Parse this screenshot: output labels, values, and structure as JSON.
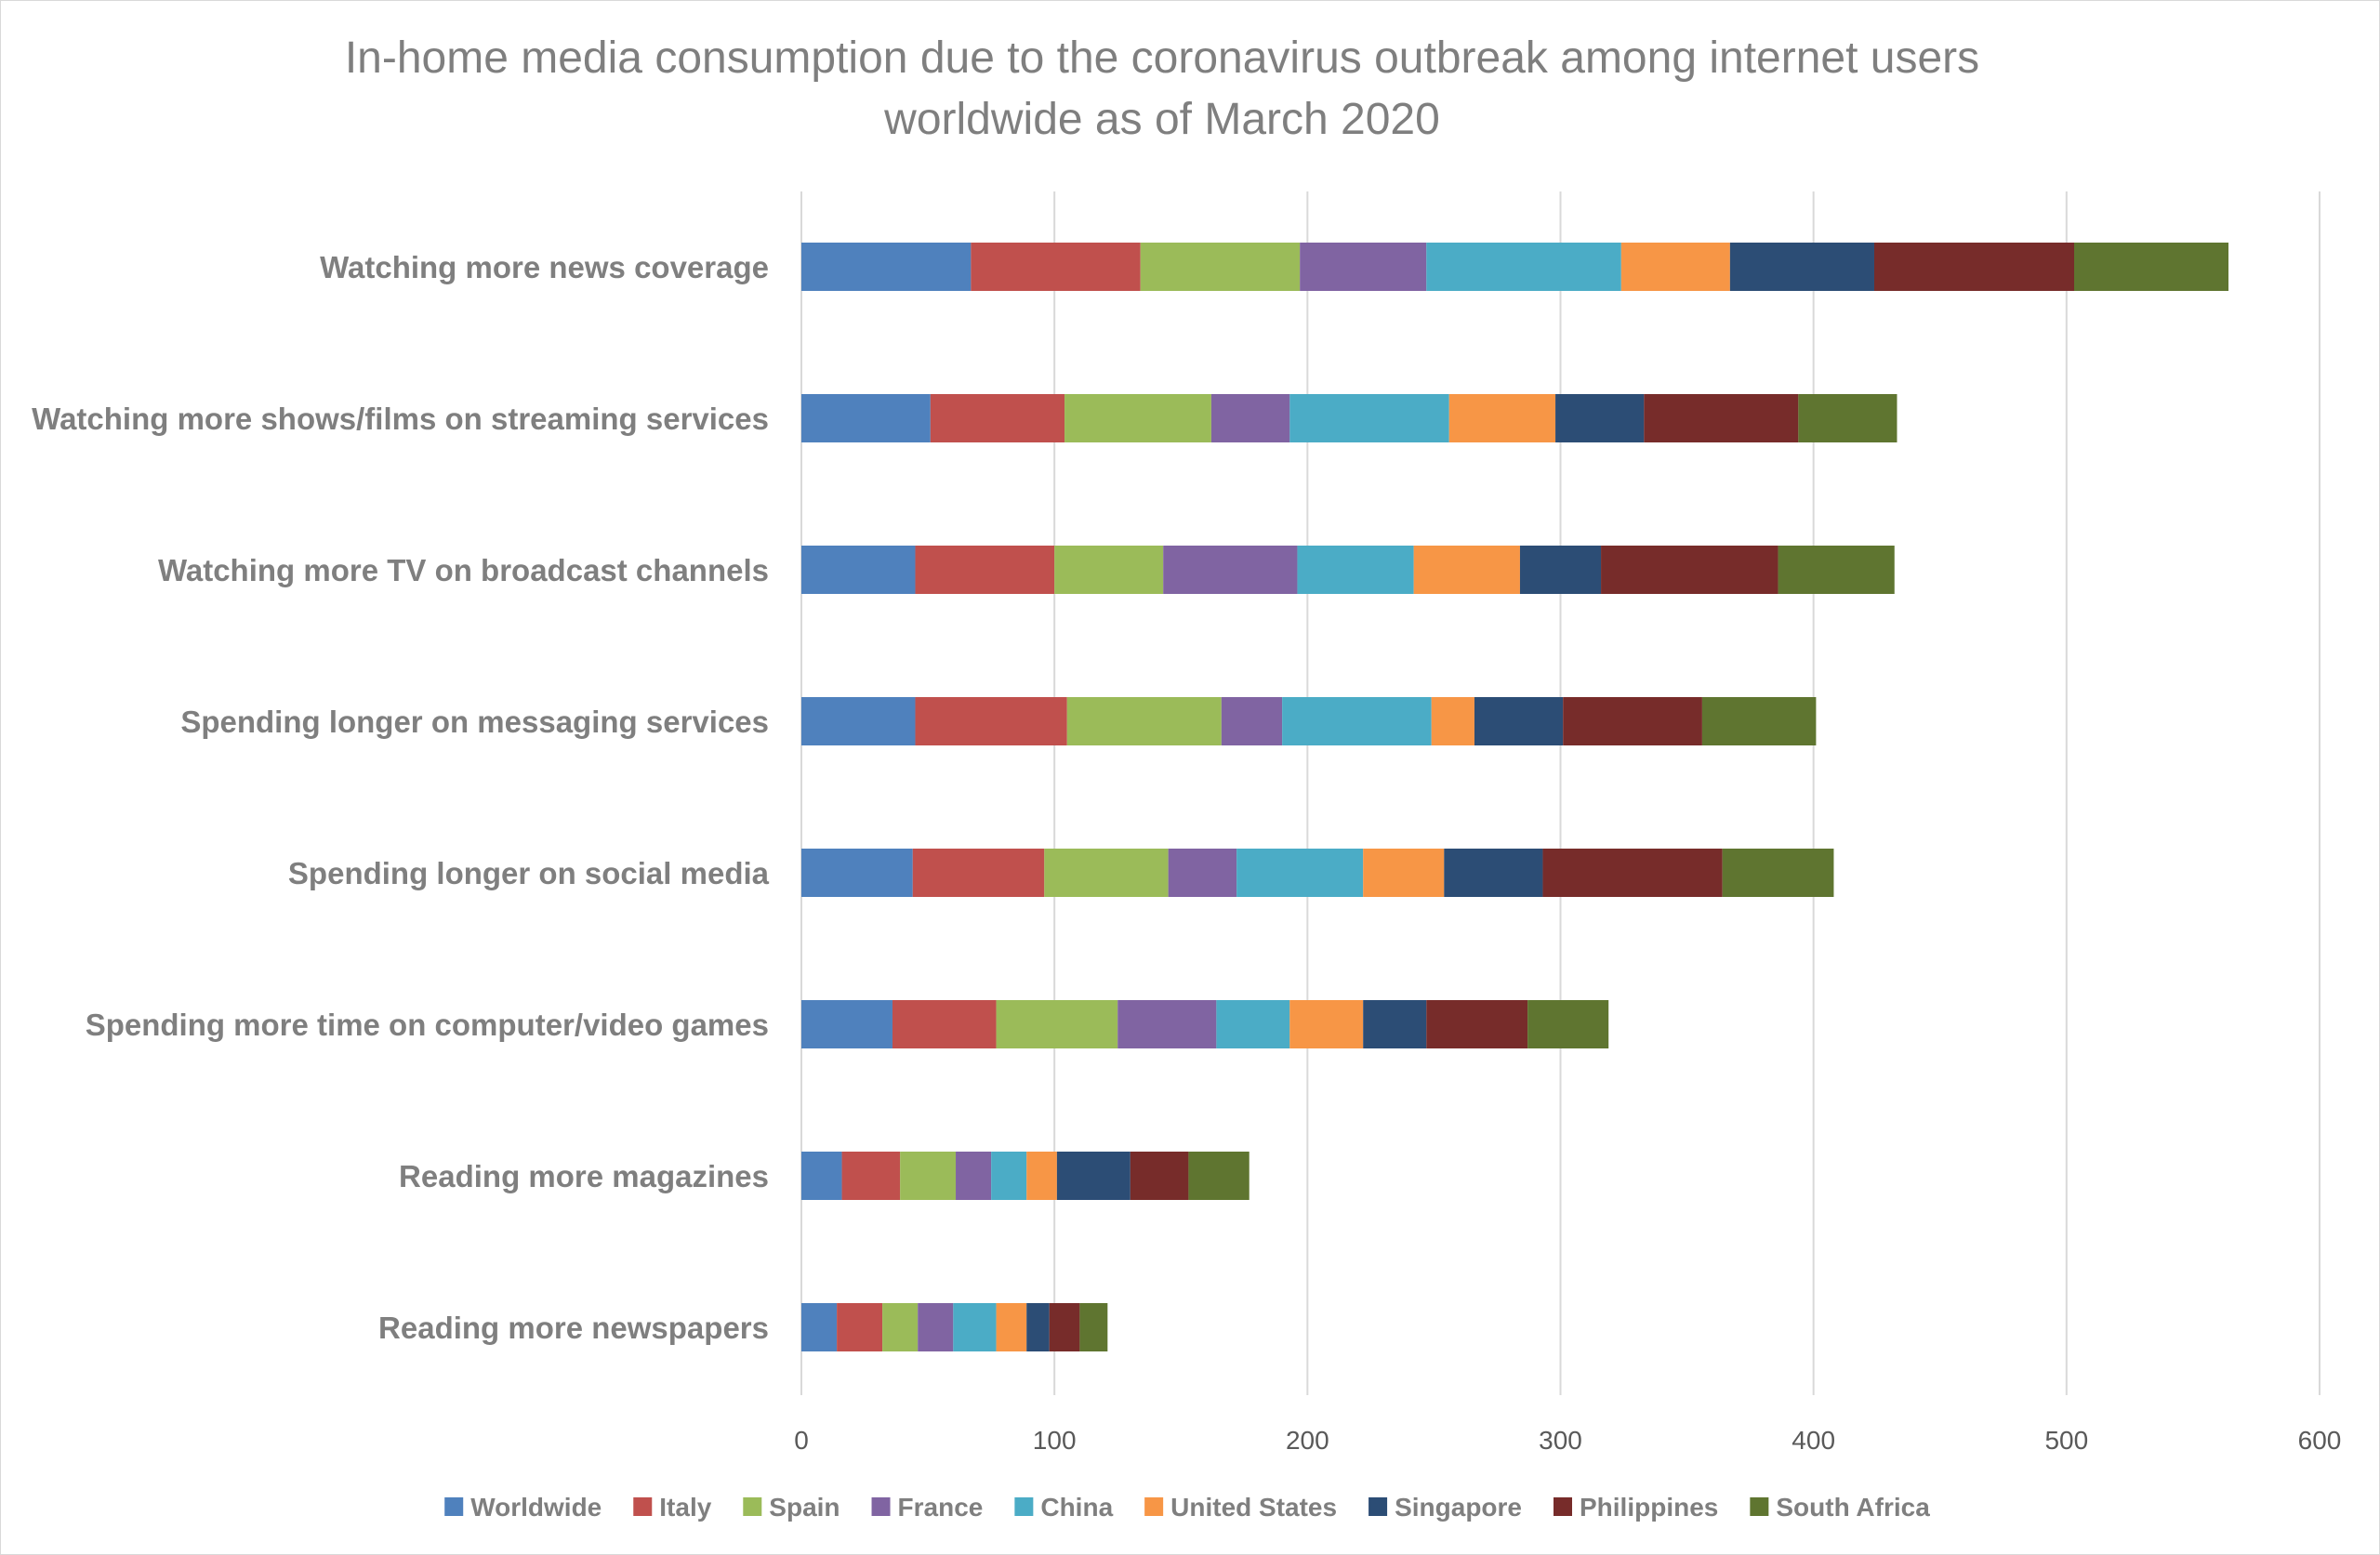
{
  "chart_data": {
    "type": "bar",
    "orientation": "horizontal",
    "stacked": true,
    "title": "In-home media consumption due to the coronavirus outbreak among internet users worldwide as of March 2020",
    "title_lines": [
      "In-home media consumption due to the coronavirus outbreak among internet users",
      "worldwide as of March 2020"
    ],
    "xlabel": "",
    "ylabel": "",
    "xlim": [
      0,
      600
    ],
    "xticks": [
      0,
      100,
      200,
      300,
      400,
      500,
      600
    ],
    "grid": true,
    "legend_position": "bottom",
    "categories": [
      "Watching more news coverage",
      "Watching more shows/films on streaming services",
      "Watching more TV on broadcast channels",
      "Spending longer on messaging services",
      "Spending longer on social media",
      "Spending more time on computer/video games",
      "Reading more magazines",
      "Reading more newspapers"
    ],
    "series": [
      {
        "name": "Worldwide",
        "color": "#4f81bd",
        "values": [
          67,
          51,
          45,
          45,
          44,
          36,
          16,
          14
        ]
      },
      {
        "name": "Italy",
        "color": "#c0504d",
        "values": [
          67,
          53,
          55,
          60,
          52,
          41,
          23,
          18
        ]
      },
      {
        "name": "Spain",
        "color": "#9bbb59",
        "values": [
          63,
          58,
          43,
          61,
          49,
          48,
          22,
          14
        ]
      },
      {
        "name": "France",
        "color": "#8064a2",
        "values": [
          50,
          31,
          53,
          24,
          27,
          39,
          14,
          14
        ]
      },
      {
        "name": "China",
        "color": "#4bacc6",
        "values": [
          77,
          63,
          46,
          59,
          50,
          29,
          14,
          17
        ]
      },
      {
        "name": "United States",
        "color": "#f79646",
        "values": [
          43,
          42,
          42,
          17,
          32,
          29,
          12,
          12
        ]
      },
      {
        "name": "Singapore",
        "color": "#2c4d75",
        "values": [
          57,
          35,
          32,
          35,
          39,
          25,
          29,
          9
        ]
      },
      {
        "name": "Philippines",
        "color": "#772c2a",
        "values": [
          79,
          61,
          70,
          55,
          71,
          40,
          23,
          12
        ]
      },
      {
        "name": "South Africa",
        "color": "#5f7530",
        "values": [
          61,
          39,
          46,
          45,
          44,
          32,
          24,
          11
        ]
      }
    ]
  }
}
